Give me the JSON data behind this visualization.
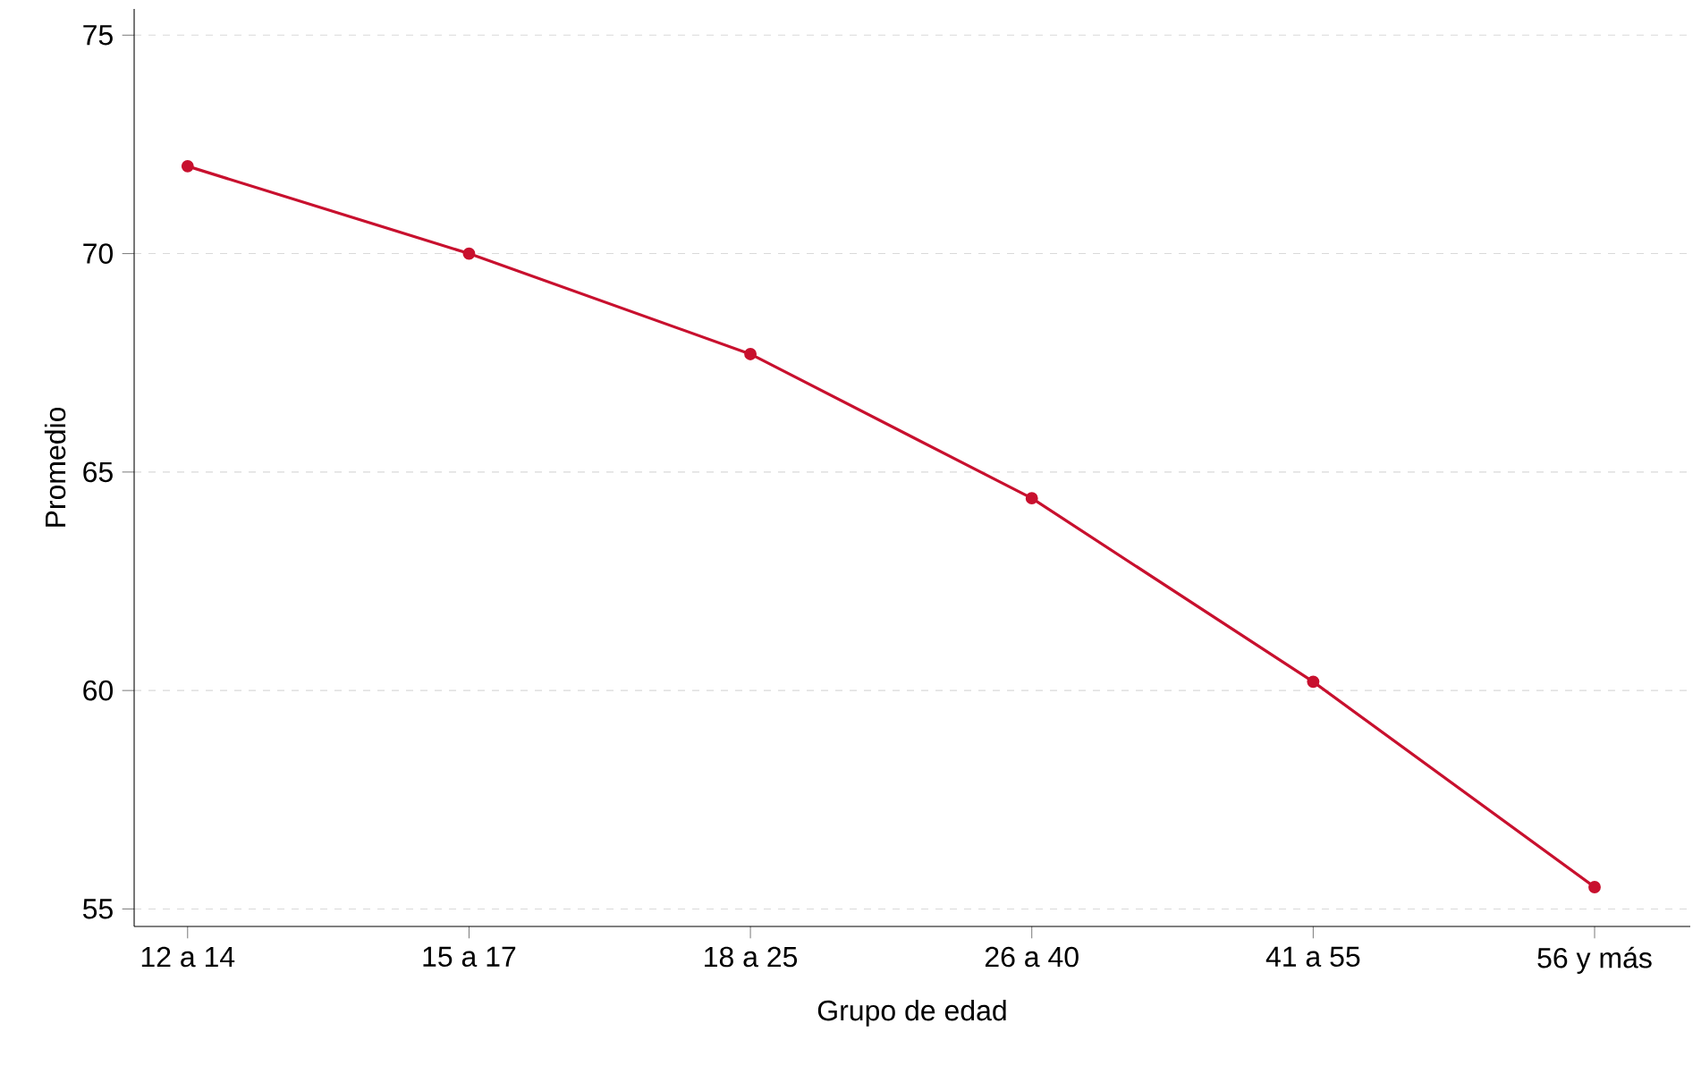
{
  "chart_data": {
    "type": "line",
    "xlabel": "Grupo de edad",
    "ylabel": "Promedio",
    "categories": [
      "12 a 14",
      "15 a 17",
      "18 a 25",
      "26 a 40",
      "41 a 55",
      "56 y más"
    ],
    "series": [
      {
        "color": "#c8102e",
        "values": [
          72.0,
          70.0,
          67.7,
          64.4,
          60.2,
          55.5
        ]
      }
    ],
    "ylim": [
      54.6,
      75.6
    ],
    "yticks": [
      55,
      60,
      65,
      70,
      75
    ],
    "grid": "y",
    "marker": "circle",
    "line_style": "solid"
  }
}
